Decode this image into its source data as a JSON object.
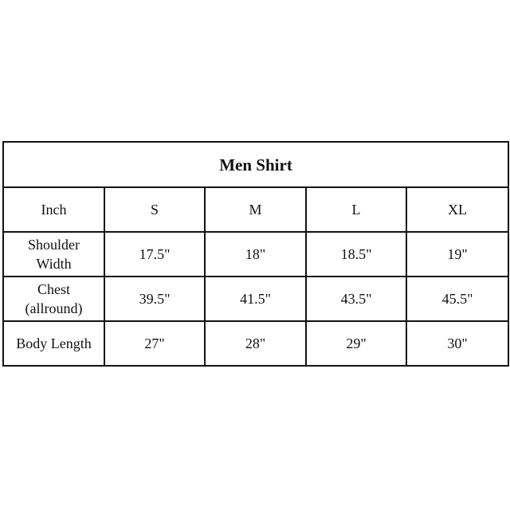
{
  "table": {
    "title": "Men Shirt",
    "header": [
      "Inch",
      "S",
      "M",
      "L",
      "XL"
    ],
    "rows": [
      {
        "label_lines": [
          "Shoulder",
          "Width"
        ],
        "values": [
          "17.5\"",
          "18\"",
          "18.5\"",
          "19\""
        ]
      },
      {
        "label_lines": [
          "Chest",
          "(allround)"
        ],
        "values": [
          "39.5\"",
          "41.5\"",
          "43.5\"",
          "45.5\""
        ]
      },
      {
        "label_lines": [
          "Body Length"
        ],
        "values": [
          "27\"",
          "28\"",
          "29\"",
          "30\""
        ]
      }
    ]
  }
}
